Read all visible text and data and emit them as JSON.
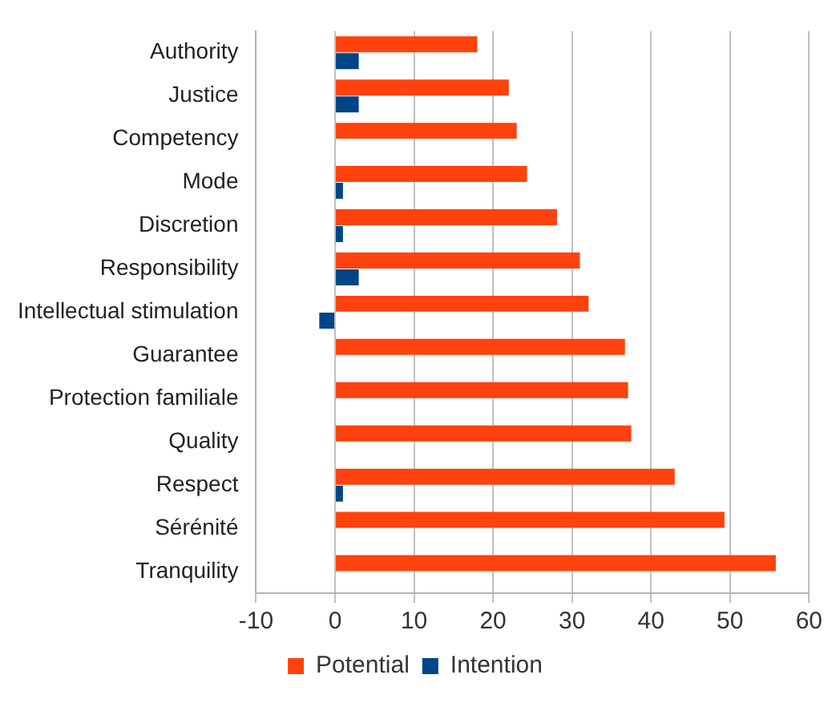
{
  "chart_data": {
    "type": "bar",
    "orientation": "horizontal",
    "categories": [
      "Authority",
      "Justice",
      "Competency",
      "Mode",
      "Discretion",
      "Responsibility",
      "Intellectual stimulation",
      "Guarantee",
      "Protection familiale",
      "Quality",
      "Respect",
      "Sérénité",
      "Tranquility"
    ],
    "series": [
      {
        "name": "Intention",
        "color": "#004586",
        "values": [
          3,
          3,
          0,
          1,
          1,
          3,
          -2,
          0,
          0,
          0,
          1,
          0,
          0
        ]
      },
      {
        "name": "Potential",
        "color": "#ff420e",
        "values": [
          18,
          22,
          23,
          24.3,
          28.1,
          31,
          32.1,
          36.7,
          37.1,
          37.5,
          43,
          49.3,
          55.8
        ]
      }
    ],
    "xlim": [
      -10,
      60
    ],
    "xticks": [
      -10,
      0,
      10,
      20,
      30,
      40,
      50,
      60
    ],
    "grid": "x",
    "legend": "bottom"
  }
}
